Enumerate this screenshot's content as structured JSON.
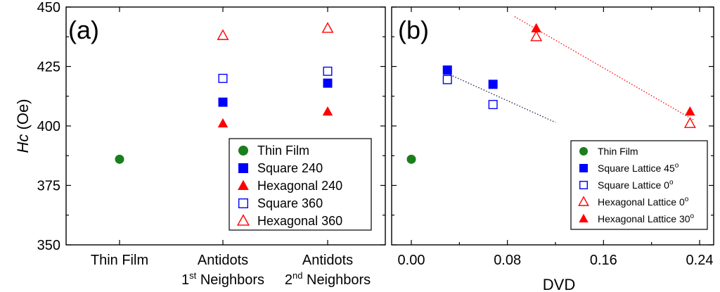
{
  "chart_data": [
    {
      "type": "scatter",
      "panel_label": "(a)",
      "xlabel": "",
      "ylabel_main": "Hc",
      "ylabel_unit": " (Oe)",
      "ylim": [
        350,
        450
      ],
      "yticks": [
        350,
        375,
        400,
        425,
        450
      ],
      "categories": [
        {
          "line1": "Thin Film",
          "line2": "",
          "sup": "",
          "tail": ""
        },
        {
          "line1": "Antidots",
          "line2": "1",
          "sup": "st",
          "tail": " Neighbors"
        },
        {
          "line1": "Antidots",
          "line2": "2",
          "sup": "nd",
          "tail": " Neighbors"
        }
      ],
      "series": [
        {
          "name": "Thin Film",
          "marker": "circle-filled",
          "color": "#1a7f1a",
          "points": [
            {
              "cat": 0,
              "y": 386
            }
          ]
        },
        {
          "name": "Square 240",
          "marker": "square-filled",
          "color": "#0000ff",
          "points": [
            {
              "cat": 1,
              "y": 410
            },
            {
              "cat": 2,
              "y": 418
            }
          ]
        },
        {
          "name": "Hexagonal 240",
          "marker": "triangle-filled",
          "color": "#ff0000",
          "points": [
            {
              "cat": 1,
              "y": 401
            },
            {
              "cat": 2,
              "y": 406
            }
          ]
        },
        {
          "name": "Square 360",
          "marker": "square-open",
          "color": "#0000ff",
          "points": [
            {
              "cat": 1,
              "y": 420
            },
            {
              "cat": 2,
              "y": 423
            }
          ]
        },
        {
          "name": "Hexagonal 360",
          "marker": "triangle-open",
          "color": "#ff0000",
          "points": [
            {
              "cat": 1,
              "y": 438
            },
            {
              "cat": 2,
              "y": 441
            }
          ]
        }
      ],
      "legend_position": "bottom-right"
    },
    {
      "type": "scatter",
      "panel_label": "(b)",
      "xlabel": "DVD",
      "ylabel": "",
      "xlim": [
        -0.01,
        0.25
      ],
      "ylim": [
        350,
        450
      ],
      "xticks": [
        "0.00",
        "0.08",
        "0.16",
        "0.24"
      ],
      "series": [
        {
          "name": "Thin Film",
          "sup": "",
          "marker": "circle-filled",
          "color": "#1a7f1a",
          "points": [
            {
              "x": 0.0,
              "y": 386
            }
          ]
        },
        {
          "name": "Square Lattice 45",
          "sup": "o",
          "marker": "square-filled",
          "color": "#0000ff",
          "points": [
            {
              "x": 0.03,
              "y": 423.5
            },
            {
              "x": 0.068,
              "y": 417.5
            }
          ]
        },
        {
          "name": "Square Lattice 0",
          "sup": "o",
          "marker": "square-open",
          "color": "#0000ff",
          "points": [
            {
              "x": 0.03,
              "y": 419.5
            },
            {
              "x": 0.068,
              "y": 409
            }
          ]
        },
        {
          "name": "Hexagonal Lattice 0",
          "sup": "o",
          "marker": "triangle-open",
          "color": "#ff0000",
          "points": [
            {
              "x": 0.104,
              "y": 437.5
            },
            {
              "x": 0.232,
              "y": 401
            }
          ]
        },
        {
          "name": "Hexagonal Lattice 30",
          "sup": "o",
          "marker": "triangle-filled",
          "color": "#ff0000",
          "points": [
            {
              "x": 0.104,
              "y": 441
            },
            {
              "x": 0.232,
              "y": 406
            }
          ]
        }
      ],
      "trend_lines": [
        {
          "color": "#1a1a4a",
          "x": [
            0.028,
            0.12
          ],
          "y": [
            422.5,
            401.5
          ]
        },
        {
          "color": "#ff0000",
          "x": [
            0.086,
            0.235
          ],
          "y": [
            446,
            402.5
          ]
        }
      ],
      "legend_position": "bottom-right"
    }
  ]
}
